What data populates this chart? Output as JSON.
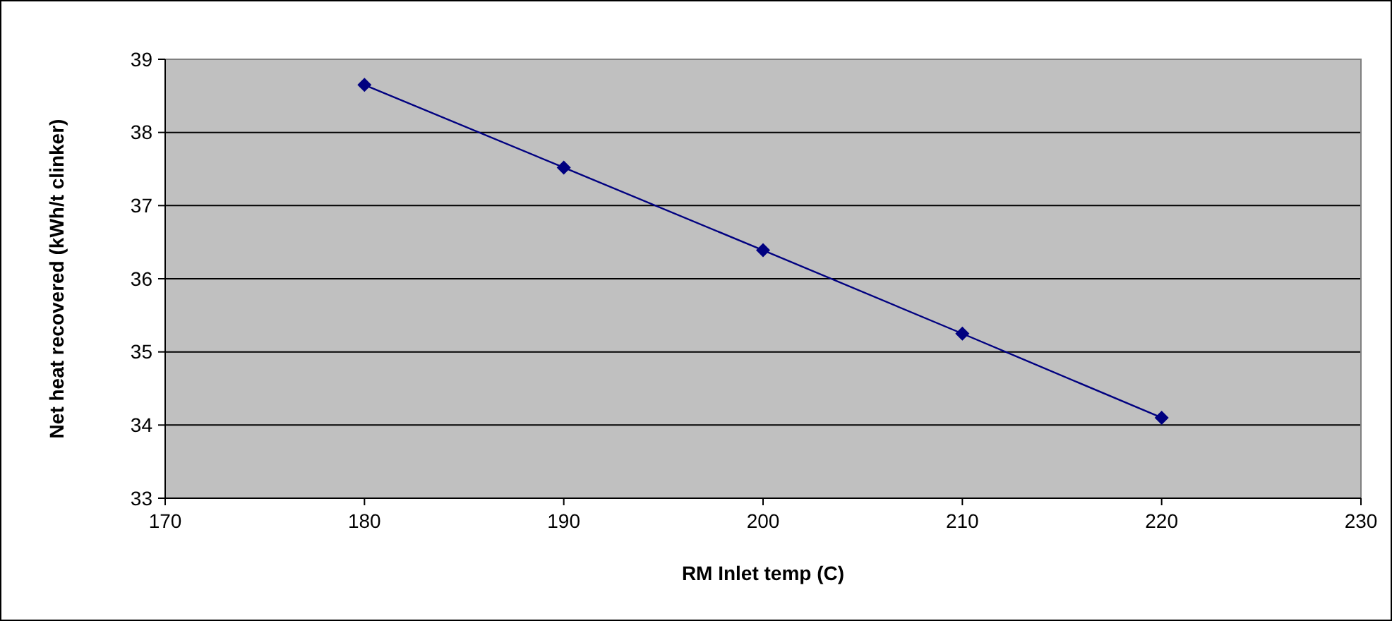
{
  "chart_data": {
    "type": "line",
    "xlabel": "RM Inlet temp (C)",
    "ylabel": "Net heat recovered (kWh/t clinker)",
    "x": [
      180,
      190,
      200,
      210,
      220
    ],
    "series": [
      {
        "color": "#000080",
        "values": [
          38.65,
          37.52,
          36.39,
          35.25,
          34.1
        ]
      }
    ],
    "xlim": [
      170,
      230
    ],
    "xticks": [
      170,
      180,
      190,
      200,
      210,
      220,
      230
    ],
    "ylim": [
      33,
      39
    ],
    "yticks": [
      33,
      34,
      35,
      36,
      37,
      38,
      39
    ],
    "grid": "y",
    "marker": "diamond",
    "line_style": "solid"
  }
}
